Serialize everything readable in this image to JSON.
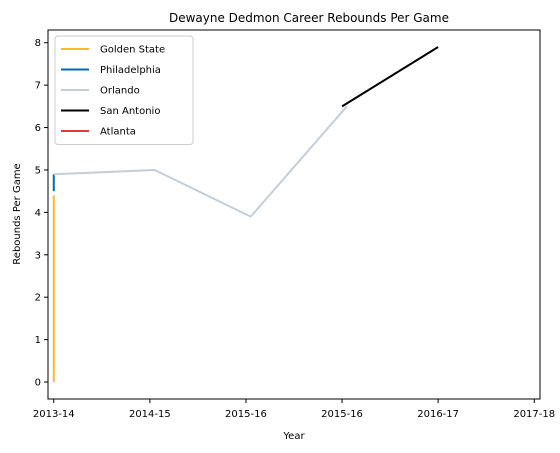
{
  "chart_data": {
    "type": "line",
    "title": "Dewayne Dedmon Career Rebounds Per Game",
    "xlabel": "Year",
    "ylabel": "Rebounds Per Game",
    "x_ticks": [
      "2013-14",
      "2014-15",
      "2015-16",
      "2015-16",
      "2016-17",
      "2017-18"
    ],
    "xlim": [
      -0.06,
      5.06
    ],
    "ylim": [
      -0.4,
      8.3
    ],
    "y_ticks": [
      0,
      1,
      2,
      3,
      4,
      5,
      6,
      7,
      8
    ],
    "grid": false,
    "legend_position": "top-left",
    "series": [
      {
        "name": "Golden State",
        "color": "#FDB927",
        "points": [
          [
            0,
            0.0
          ],
          [
            0,
            4.4
          ]
        ]
      },
      {
        "name": "Philadelphia",
        "color": "#006BB6",
        "points": [
          [
            0,
            4.5
          ],
          [
            0,
            4.9
          ]
        ]
      },
      {
        "name": "Orlando",
        "color": "#C4CED4",
        "points": [
          [
            0,
            4.9
          ],
          [
            1.05,
            5.0
          ],
          [
            2.05,
            3.9
          ],
          [
            3.05,
            6.5
          ]
        ]
      },
      {
        "name": "San Antonio",
        "color": "#000000",
        "points": [
          [
            3.0,
            6.5
          ],
          [
            4.0,
            7.9
          ]
        ]
      },
      {
        "name": "Atlanta",
        "color": "#E03A3E",
        "points": []
      }
    ]
  }
}
